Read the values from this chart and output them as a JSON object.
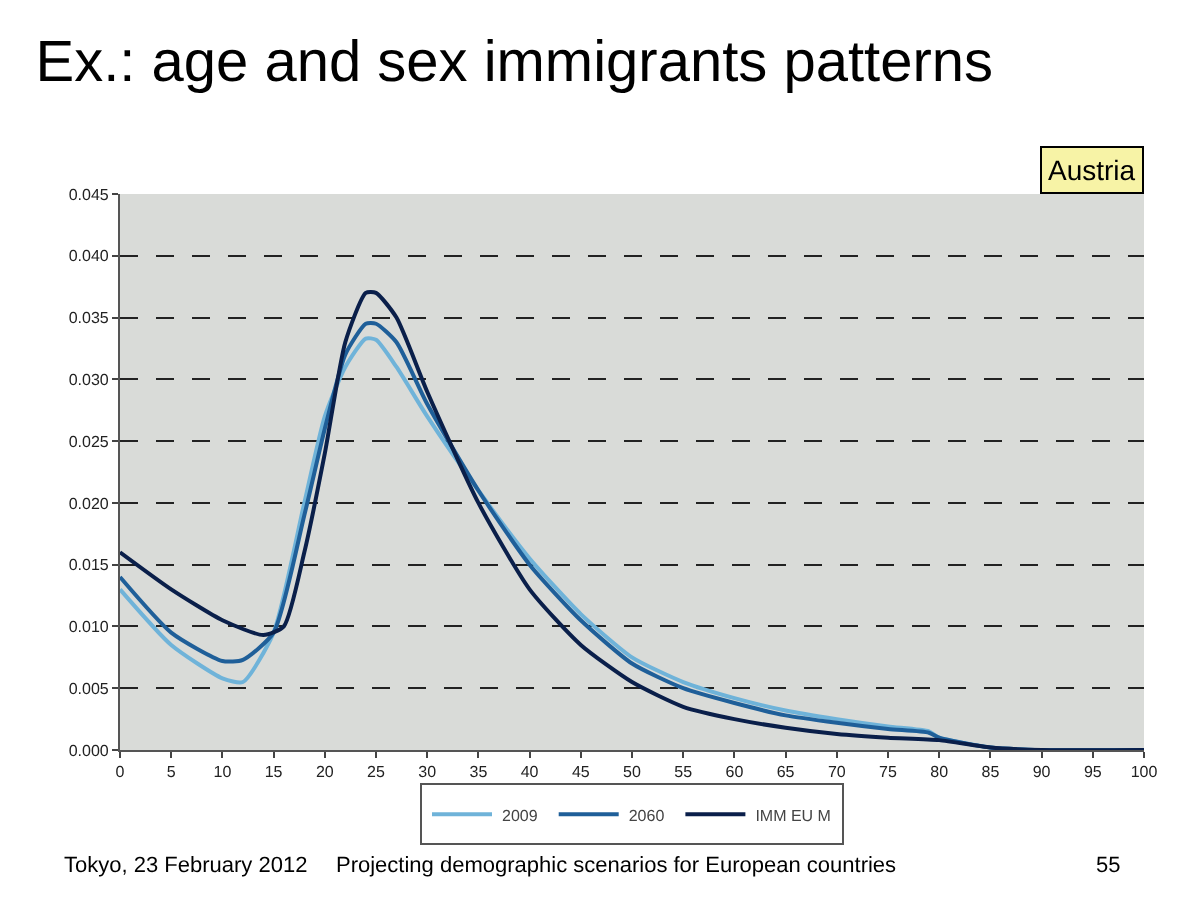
{
  "chart_data": {
    "type": "line",
    "title": "Ex.: age and sex immigrants patterns",
    "annotations": [
      "Austria",
      "Tokyo, 23 February 2012",
      "Projecting demographic scenarios for European countries",
      "55"
    ],
    "series": [
      {
        "name": "2009",
        "color": "#6fb3d9",
        "x": [
          0,
          5,
          10,
          12,
          15,
          18,
          20,
          22,
          24,
          25,
          27,
          30,
          35,
          40,
          45,
          50,
          55,
          60,
          65,
          70,
          75,
          79,
          80,
          85,
          90,
          100
        ],
        "values": [
          0.013,
          0.0085,
          0.0058,
          0.0055,
          0.0095,
          0.02,
          0.027,
          0.031,
          0.0333,
          0.0332,
          0.031,
          0.027,
          0.021,
          0.0155,
          0.011,
          0.0075,
          0.0055,
          0.0042,
          0.0032,
          0.0025,
          0.0019,
          0.0015,
          0.001,
          0.0002,
          0,
          0
        ]
      },
      {
        "name": "2060",
        "color": "#1f5f99",
        "x": [
          0,
          5,
          10,
          12,
          15,
          18,
          20,
          22,
          24,
          25,
          27,
          30,
          35,
          40,
          45,
          50,
          55,
          60,
          65,
          70,
          75,
          79,
          80,
          85,
          90,
          100
        ],
        "values": [
          0.014,
          0.0095,
          0.0072,
          0.0073,
          0.0095,
          0.019,
          0.026,
          0.032,
          0.0345,
          0.0345,
          0.033,
          0.028,
          0.021,
          0.015,
          0.0105,
          0.007,
          0.005,
          0.0038,
          0.0028,
          0.0022,
          0.0017,
          0.0014,
          0.001,
          0.0002,
          0,
          0
        ]
      },
      {
        "name": "IMM EU M",
        "color": "#0a1f4a",
        "x": [
          0,
          5,
          10,
          14,
          16,
          18,
          20,
          22,
          24,
          25,
          27,
          30,
          35,
          40,
          45,
          50,
          55,
          60,
          65,
          70,
          75,
          80,
          85,
          90,
          100
        ],
        "values": [
          0.016,
          0.013,
          0.0105,
          0.0093,
          0.01,
          0.016,
          0.024,
          0.033,
          0.037,
          0.037,
          0.035,
          0.029,
          0.02,
          0.013,
          0.0085,
          0.0055,
          0.0035,
          0.0025,
          0.0018,
          0.0013,
          0.001,
          0.0008,
          0.0002,
          0,
          0
        ]
      }
    ],
    "xlim": [
      0,
      100
    ],
    "xticks": [
      0,
      5,
      10,
      15,
      20,
      25,
      30,
      35,
      40,
      45,
      50,
      55,
      60,
      65,
      70,
      75,
      80,
      85,
      90,
      95,
      100
    ],
    "ylim": [
      0,
      0.045
    ],
    "yticks": [
      {
        "value": 0,
        "label": "0.000"
      },
      {
        "value": 0.005,
        "label": "0.005"
      },
      {
        "value": 0.01,
        "label": "0.010"
      },
      {
        "value": 0.015,
        "label": "0.015"
      },
      {
        "value": 0.02,
        "label": "0.020"
      },
      {
        "value": 0.025,
        "label": "0.025"
      },
      {
        "value": 0.03,
        "label": "0.030"
      },
      {
        "value": 0.035,
        "label": "0.035"
      },
      {
        "value": 0.04,
        "label": "0.040"
      },
      {
        "value": 0.045,
        "label": "0.045"
      }
    ],
    "grid": "y",
    "legend": "bottom",
    "line_style": "solid"
  }
}
